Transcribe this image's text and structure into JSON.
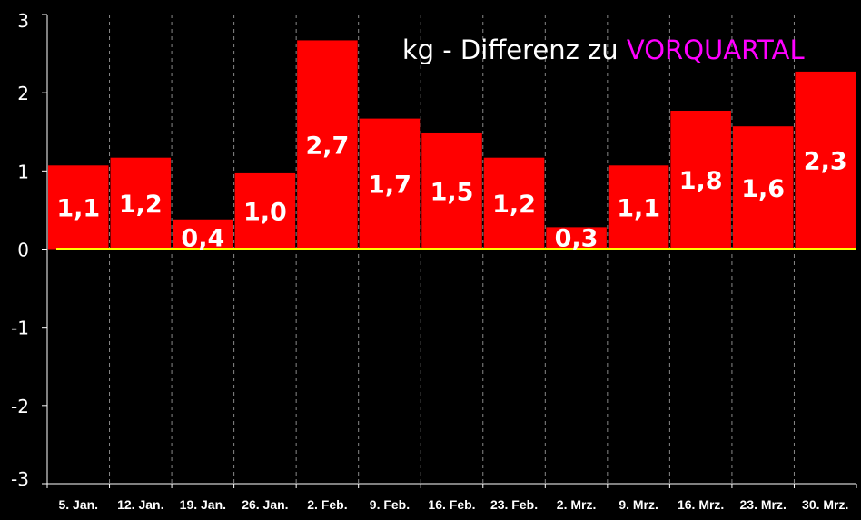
{
  "chart_data": {
    "type": "bar",
    "title": {
      "prefix": "kg - Differenz zu ",
      "highlight": "VORQUARTAL",
      "prefix_color": "#ffffff",
      "highlight_color": "#ff00ff"
    },
    "categories": [
      "5. Jan.",
      "12. Jan.",
      "19. Jan.",
      "26. Jan.",
      "2. Feb.",
      "9. Feb.",
      "16. Feb.",
      "23. Feb.",
      "2. Mrz.",
      "9. Mrz.",
      "16. Mrz.",
      "23. Mrz.",
      "30. Mrz."
    ],
    "values": [
      1.07,
      1.17,
      0.38,
      0.97,
      2.67,
      1.67,
      1.48,
      1.17,
      0.28,
      1.07,
      1.77,
      1.57,
      2.27
    ],
    "data_labels": [
      "1,1",
      "1,2",
      "0,4",
      "1,0",
      "2,7",
      "1,7",
      "1,5",
      "1,2",
      "0,3",
      "1,1",
      "1,8",
      "1,6",
      "2,3"
    ],
    "xlabel": "",
    "ylabel": "",
    "ylim": [
      -3,
      3
    ],
    "yticks": [
      3,
      2,
      1,
      0,
      -1,
      -2,
      -3
    ],
    "ytick_labels": [
      "3",
      "2",
      "1",
      "0",
      "-1",
      "-2",
      "-3"
    ],
    "grid": "vertical-dashed",
    "colors": {
      "background": "#000000",
      "bar": "#ff0000",
      "zero_line": "#ffff00",
      "text": "#ffffff",
      "grid": "#888888"
    }
  }
}
